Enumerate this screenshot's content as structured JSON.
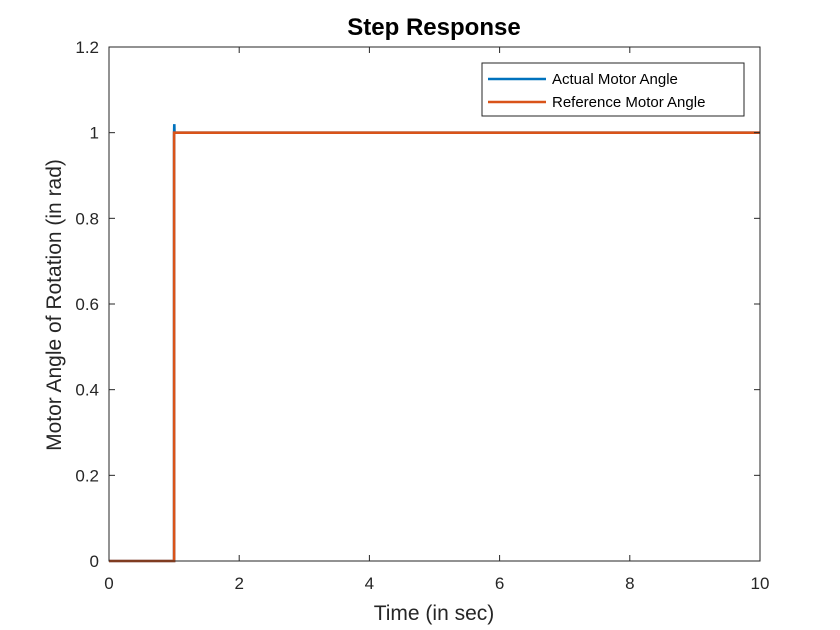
{
  "chart_data": {
    "type": "line",
    "title": "Step Response",
    "xlabel": "Time (in sec)",
    "ylabel": "Motor Angle of Rotation (in rad)",
    "xlim": [
      0,
      10
    ],
    "ylim": [
      0,
      1.2
    ],
    "xticks": [
      0,
      2,
      4,
      6,
      8,
      10
    ],
    "xtick_labels": [
      "0",
      "2",
      "4",
      "6",
      "8",
      "10"
    ],
    "yticks": [
      0,
      0.2,
      0.4,
      0.6,
      0.8,
      1,
      1.2
    ],
    "ytick_labels": [
      "0",
      "0.2",
      "0.4",
      "0.6",
      "0.8",
      "1",
      "1.2"
    ],
    "grid": false,
    "legend_position": "top-right",
    "series": [
      {
        "name": "Actual Motor Angle",
        "color": "#0072BD",
        "x": [
          0,
          1,
          1,
          1.003,
          1.006,
          1.012,
          10
        ],
        "y": [
          0,
          0,
          1,
          1.02,
          1.0,
          1.0,
          1.0
        ]
      },
      {
        "name": "Reference Motor Angle",
        "color": "#D95319",
        "x": [
          0,
          1,
          1,
          10
        ],
        "y": [
          0,
          0,
          1,
          1
        ]
      }
    ]
  }
}
